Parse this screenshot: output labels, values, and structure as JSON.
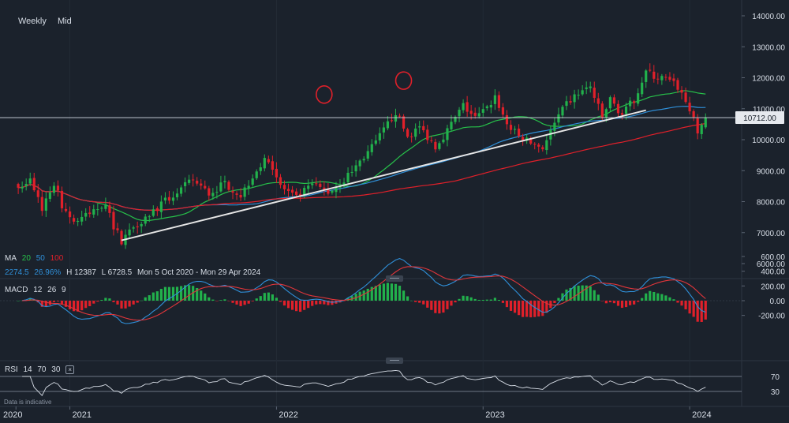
{
  "toolbar": {
    "interval": "Weekly",
    "price_type": "Mid"
  },
  "legend": {
    "ma": {
      "label": "MA",
      "p1": "20",
      "p2": "50",
      "p3": "100"
    },
    "stats": {
      "change": "2274.5",
      "pct": "26.96%",
      "high": "H 12387",
      "low": "L 6728.5",
      "range": "Mon 5 Oct 2020 - Mon 29 Apr 2024"
    },
    "macd": {
      "label": "MACD",
      "p1": "12",
      "p2": "26",
      "p3": "9"
    },
    "rsi": {
      "label": "RSI",
      "p1": "14",
      "p2": "70",
      "p3": "30"
    }
  },
  "footer": {
    "note": "Data is indicative"
  },
  "colors": {
    "bg": "#1b222c",
    "up": "#22b14c",
    "down": "#e0202a",
    "ma20": "#27c24a",
    "ma50": "#2f8fd8",
    "ma100": "#e0202a",
    "trend": "#e6e6e6",
    "signal": "#e0353a"
  },
  "chart_data": {
    "type": "candlestick",
    "price_axis": {
      "ticks": [
        "14000.00",
        "13000.00",
        "12000.00",
        "11000.00",
        "10000.00",
        "9000.00",
        "8000.00",
        "7000.00",
        "6000.00"
      ],
      "ylim": [
        5500,
        14250
      ]
    },
    "last_price": {
      "label": "10712.00",
      "value": 10712
    },
    "time_axis": {
      "labels": [
        "2020",
        "2021",
        "2022",
        "2023",
        "2024"
      ],
      "dates": [
        "2020-10-01",
        "2021-01-04",
        "2022-01-03",
        "2023-01-02",
        "2024-01-01"
      ]
    },
    "candles": {
      "start_date": "2020-10-05",
      "interval": "weekly",
      "anchors": [
        [
          0,
          8450
        ],
        [
          3,
          8700
        ],
        [
          6,
          7800
        ],
        [
          9,
          8600
        ],
        [
          11,
          7900
        ],
        [
          14,
          7350
        ],
        [
          18,
          7600
        ],
        [
          22,
          8000
        ],
        [
          24,
          7200
        ],
        [
          26,
          6750
        ],
        [
          29,
          7200
        ],
        [
          34,
          7700
        ],
        [
          40,
          8300
        ],
        [
          44,
          8700
        ],
        [
          48,
          8250
        ],
        [
          52,
          8600
        ],
        [
          56,
          8200
        ],
        [
          60,
          9050
        ],
        [
          63,
          9400
        ],
        [
          66,
          8500
        ],
        [
          70,
          8100
        ],
        [
          74,
          8550
        ],
        [
          78,
          8300
        ],
        [
          82,
          8700
        ],
        [
          86,
          9300
        ],
        [
          90,
          9900
        ],
        [
          93,
          10500
        ],
        [
          95,
          10900
        ],
        [
          98,
          10100
        ],
        [
          101,
          10400
        ],
        [
          103,
          10100
        ],
        [
          105,
          9800
        ],
        [
          108,
          10300
        ],
        [
          112,
          11100
        ],
        [
          115,
          10700
        ],
        [
          118,
          11000
        ],
        [
          120,
          11400
        ],
        [
          123,
          10500
        ],
        [
          126,
          10100
        ],
        [
          129,
          9900
        ],
        [
          132,
          9750
        ],
        [
          135,
          10500
        ],
        [
          138,
          11150
        ],
        [
          141,
          11500
        ],
        [
          144,
          11700
        ],
        [
          147,
          10700
        ],
        [
          149,
          11300
        ],
        [
          152,
          10800
        ],
        [
          155,
          11300
        ],
        [
          158,
          12200
        ],
        [
          160,
          12050
        ],
        [
          163,
          11950
        ],
        [
          166,
          11700
        ],
        [
          169,
          11000
        ],
        [
          171,
          10200
        ],
        [
          173,
          10800
        ]
      ],
      "last": {
        "o": 10400,
        "h": 10850,
        "l": 10350,
        "c": 10712
      }
    },
    "moving_averages": [
      {
        "name": "MA 20",
        "period": 20
      },
      {
        "name": "MA 50",
        "period": 50
      },
      {
        "name": "MA 100",
        "period": 100
      }
    ],
    "trend_line": {
      "from": {
        "date": "2021-04-05",
        "value": 6750
      },
      "to": {
        "date": "2023-10-16",
        "value": 10950
      }
    },
    "circled_highs": [
      {
        "date": "2022-03-28",
        "value": 11050
      },
      {
        "date": "2022-08-15",
        "value": 11500
      }
    ],
    "macd": {
      "params": [
        12,
        26,
        9
      ],
      "ticks": [
        "600.00",
        "400.00",
        "200.00",
        "0.00",
        "-200.00"
      ],
      "ylim": [
        -500,
        700
      ]
    },
    "rsi": {
      "params": [
        14,
        70,
        30
      ],
      "ticks": [
        "70",
        "30"
      ],
      "levels": [
        70,
        30
      ]
    }
  }
}
